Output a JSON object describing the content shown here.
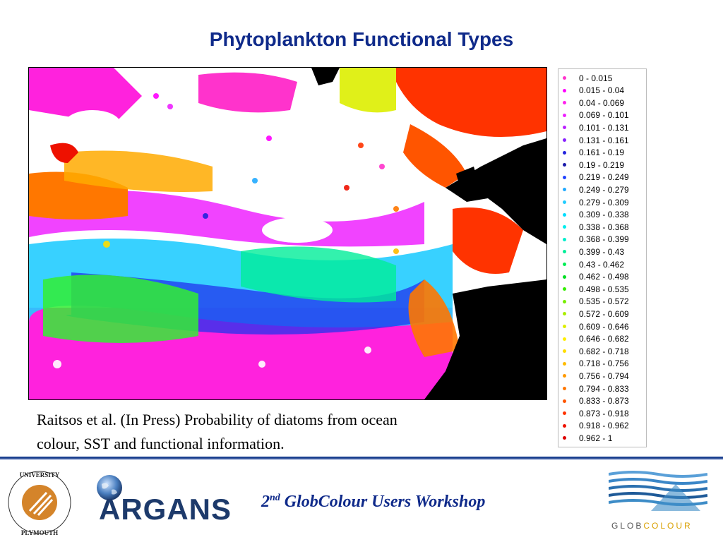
{
  "slide": {
    "title": "Phytoplankton Functional Types",
    "caption_line1": "Raitsos et al. (In Press) Probability of diatoms from ocean",
    "caption_line2": "colour, SST and functional information."
  },
  "legend": [
    {
      "label": "0 - 0.015",
      "color": "#ff33cc"
    },
    {
      "label": "0.015 - 0.04",
      "color": "#ff00ff"
    },
    {
      "label": "0.04 - 0.069",
      "color": "#ff22ee"
    },
    {
      "label": "0.069 - 0.101",
      "color": "#ee22ff"
    },
    {
      "label": "0.101 - 0.131",
      "color": "#bb22ff"
    },
    {
      "label": "0.131 - 0.161",
      "color": "#8822ff"
    },
    {
      "label": "0.161 - 0.19",
      "color": "#2222dd"
    },
    {
      "label": "0.19 - 0.219",
      "color": "#1a1aaa"
    },
    {
      "label": "0.219 - 0.249",
      "color": "#2244ff"
    },
    {
      "label": "0.249 - 0.279",
      "color": "#22aaff"
    },
    {
      "label": "0.279 - 0.309",
      "color": "#22ccff"
    },
    {
      "label": "0.309 - 0.338",
      "color": "#00ddff"
    },
    {
      "label": "0.338 - 0.368",
      "color": "#00eeee"
    },
    {
      "label": "0.368 - 0.399",
      "color": "#00eecc"
    },
    {
      "label": "0.399 - 0.43",
      "color": "#00ee99"
    },
    {
      "label": "0.43 - 0.462",
      "color": "#00ee55"
    },
    {
      "label": "0.462 - 0.498",
      "color": "#00dd22"
    },
    {
      "label": "0.498 - 0.535",
      "color": "#33ee00"
    },
    {
      "label": "0.535 - 0.572",
      "color": "#77ee00"
    },
    {
      "label": "0.572 - 0.609",
      "color": "#aaee00"
    },
    {
      "label": "0.609 - 0.646",
      "color": "#ddee00"
    },
    {
      "label": "0.646 - 0.682",
      "color": "#ffee00"
    },
    {
      "label": "0.682 - 0.718",
      "color": "#ffdd00"
    },
    {
      "label": "0.718 - 0.756",
      "color": "#ffbb00"
    },
    {
      "label": "0.756 - 0.794",
      "color": "#ff9900"
    },
    {
      "label": "0.794 - 0.833",
      "color": "#ff7700"
    },
    {
      "label": "0.833 - 0.873",
      "color": "#ff5500"
    },
    {
      "label": "0.873 - 0.918",
      "color": "#ff3300"
    },
    {
      "label": "0.918 - 0.962",
      "color": "#ee1100"
    },
    {
      "label": "0.962 - 1",
      "color": "#dd0000"
    }
  ],
  "footer": {
    "workshop_ordinal": "2",
    "workshop_suffix": "nd",
    "workshop_name": " GlobColour Users Workshop",
    "argans_logo_text": "ARGANS",
    "plymouth_logo_text": "UNIVERSITY OF PLYMOUTH",
    "globcolour_logo_prefix": "GLOB",
    "globcolour_logo_suffix": "COLOUR"
  }
}
